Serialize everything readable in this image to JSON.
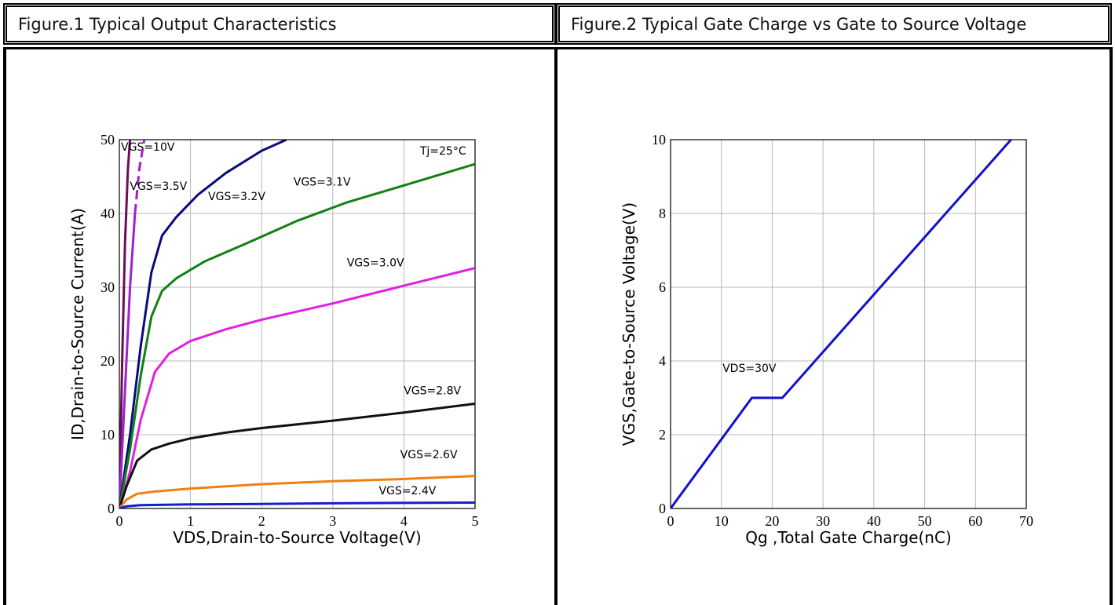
{
  "figures": [
    {
      "title": "Figure.1 Typical Output Characteristics"
    },
    {
      "title": "Figure.2 Typical Gate Charge vs Gate to Source Voltage"
    }
  ],
  "chart_data": [
    {
      "type": "line",
      "title": "Figure.1 Typical Output Characteristics",
      "xlabel": "VDS,Drain-to-Source Voltage(V)",
      "ylabel": "ID,Drain-to-Source Current(A)",
      "xlim": [
        0,
        5
      ],
      "ylim": [
        0,
        50
      ],
      "xticks": [
        0,
        1,
        2,
        3,
        4,
        5
      ],
      "yticks": [
        0,
        10,
        20,
        30,
        40,
        50
      ],
      "grid": true,
      "annotations": [
        {
          "text": "Tj=25°C",
          "x": 4.55,
          "y": 48
        }
      ],
      "series": [
        {
          "name": "VGS=10V",
          "color": "#6a0d5a",
          "label_at": [
            0.4,
            48.5
          ],
          "points": [
            [
              0,
              0
            ],
            [
              0.04,
              20
            ],
            [
              0.08,
              36
            ],
            [
              0.12,
              46
            ],
            [
              0.15,
              50
            ]
          ]
        },
        {
          "name": "VGS=3.5V",
          "color": "#a020d0",
          "dash_tail": true,
          "label_at": [
            0.55,
            43.2
          ],
          "points": [
            [
              0,
              0
            ],
            [
              0.08,
              16
            ],
            [
              0.15,
              30
            ],
            [
              0.22,
              40
            ],
            [
              0.28,
              46
            ],
            [
              0.35,
              50
            ]
          ]
        },
        {
          "name": "VGS=3.2V",
          "color": "#0a0a80",
          "label_at": [
            1.65,
            41.8
          ],
          "points": [
            [
              0,
              0
            ],
            [
              0.15,
              10
            ],
            [
              0.3,
              22
            ],
            [
              0.45,
              32
            ],
            [
              0.6,
              37
            ],
            [
              0.8,
              39.5
            ],
            [
              1.1,
              42.5
            ],
            [
              1.5,
              45.5
            ],
            [
              2.0,
              48.5
            ],
            [
              2.35,
              50
            ]
          ]
        },
        {
          "name": "VGS=3.1V",
          "color": "#128012",
          "label_at": [
            2.85,
            43.8
          ],
          "points": [
            [
              0,
              0
            ],
            [
              0.15,
              8
            ],
            [
              0.3,
              18
            ],
            [
              0.45,
              26
            ],
            [
              0.6,
              29.5
            ],
            [
              0.8,
              31.2
            ],
            [
              1.2,
              33.5
            ],
            [
              1.8,
              36
            ],
            [
              2.5,
              39
            ],
            [
              3.2,
              41.5
            ],
            [
              4.0,
              43.8
            ],
            [
              5.0,
              46.7
            ]
          ]
        },
        {
          "name": "VGS=3.0V",
          "color": "#e020e0",
          "label_at": [
            3.6,
            32.8
          ],
          "points": [
            [
              0,
              0
            ],
            [
              0.15,
              5
            ],
            [
              0.3,
              12
            ],
            [
              0.5,
              18.5
            ],
            [
              0.7,
              21
            ],
            [
              1.0,
              22.7
            ],
            [
              1.5,
              24.3
            ],
            [
              2.0,
              25.6
            ],
            [
              3.0,
              27.8
            ],
            [
              4.0,
              30.2
            ],
            [
              5.0,
              32.6
            ]
          ]
        },
        {
          "name": "VGS=2.8V",
          "color": "#111111",
          "label_at": [
            4.4,
            15.5
          ],
          "points": [
            [
              0,
              0
            ],
            [
              0.1,
              3
            ],
            [
              0.25,
              6.5
            ],
            [
              0.45,
              8
            ],
            [
              0.7,
              8.8
            ],
            [
              1.0,
              9.5
            ],
            [
              1.5,
              10.3
            ],
            [
              2.0,
              10.9
            ],
            [
              3.0,
              11.9
            ],
            [
              4.0,
              13.0
            ],
            [
              5.0,
              14.2
            ]
          ]
        },
        {
          "name": "VGS=2.6V",
          "color": "#f08010",
          "label_at": [
            4.35,
            6.8
          ],
          "points": [
            [
              0,
              0
            ],
            [
              0.1,
              1.2
            ],
            [
              0.25,
              2.0
            ],
            [
              0.5,
              2.3
            ],
            [
              1.0,
              2.7
            ],
            [
              2.0,
              3.3
            ],
            [
              3.0,
              3.7
            ],
            [
              4.0,
              4.0
            ],
            [
              5.0,
              4.4
            ]
          ]
        },
        {
          "name": "VGS=2.4V",
          "color": "#1020d0",
          "label_at": [
            4.05,
            1.9
          ],
          "points": [
            [
              0,
              0
            ],
            [
              0.1,
              0.3
            ],
            [
              0.3,
              0.45
            ],
            [
              1.0,
              0.55
            ],
            [
              2.0,
              0.62
            ],
            [
              3.0,
              0.7
            ],
            [
              4.0,
              0.76
            ],
            [
              5.0,
              0.8
            ]
          ]
        }
      ]
    },
    {
      "type": "line",
      "title": "Figure.2 Typical Gate Charge vs Gate to Source Voltage",
      "xlabel": "Qg ,Total Gate Charge(nC)",
      "ylabel": "VGS,Gate-to-Source Voltage(V)",
      "xlim": [
        0,
        70
      ],
      "ylim": [
        0,
        10
      ],
      "xticks": [
        0,
        10,
        20,
        30,
        40,
        50,
        60,
        70
      ],
      "yticks": [
        0,
        2,
        4,
        6,
        8,
        10
      ],
      "grid": true,
      "annotations": [
        {
          "text": "VDS=30V",
          "x": 15.5,
          "y": 3.7
        }
      ],
      "series": [
        {
          "color": "#1010d0",
          "points": [
            [
              0,
              0
            ],
            [
              16,
              3
            ],
            [
              22,
              3
            ],
            [
              67,
              10
            ]
          ]
        }
      ]
    }
  ],
  "colors": {
    "border": "#000000",
    "grid": "#b8b8b8"
  }
}
